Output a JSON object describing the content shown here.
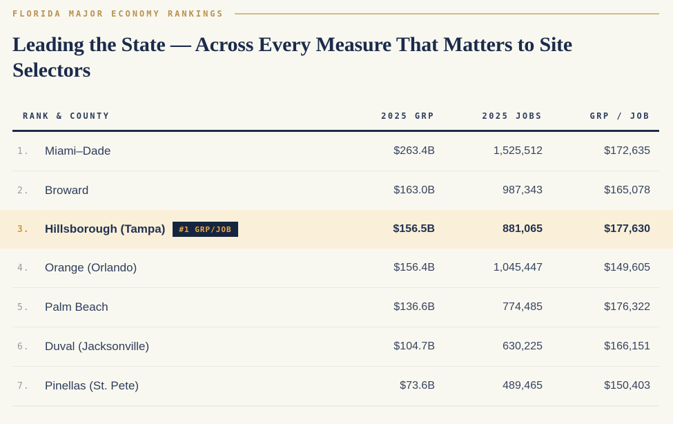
{
  "header": {
    "eyebrow": "FLORIDA MAJOR ECONOMY RANKINGS",
    "title_lines": [
      "Leading the State — Across Every Measure That Matters to Site",
      "Selectors"
    ]
  },
  "table": {
    "columns": [
      "RANK & COUNTY",
      "2025 GRP",
      "2025 JOBS",
      "GRP / JOB"
    ],
    "rows": [
      {
        "rank": "1.",
        "county": "Miami–Dade",
        "grp": "$263.4B",
        "jobs": "1,525,512",
        "grp_per_job": "$172,635",
        "highlighted": false
      },
      {
        "rank": "2.",
        "county": "Broward",
        "grp": "$163.0B",
        "jobs": "987,343",
        "grp_per_job": "$165,078",
        "highlighted": false
      },
      {
        "rank": "3.",
        "county": "Hillsborough (Tampa)",
        "badge": "#1 GRP/JOB",
        "grp": "$156.5B",
        "jobs": "881,065",
        "grp_per_job": "$177,630",
        "highlighted": true
      },
      {
        "rank": "4.",
        "county": "Orange (Orlando)",
        "grp": "$156.4B",
        "jobs": "1,045,447",
        "grp_per_job": "$149,605",
        "highlighted": false
      },
      {
        "rank": "5.",
        "county": "Palm Beach",
        "grp": "$136.6B",
        "jobs": "774,485",
        "grp_per_job": "$176,322",
        "highlighted": false
      },
      {
        "rank": "6.",
        "county": "Duval (Jacksonville)",
        "grp": "$104.7B",
        "jobs": "630,225",
        "grp_per_job": "$166,151",
        "highlighted": false
      },
      {
        "rank": "7.",
        "county": "Pinellas (St. Pete)",
        "grp": "$73.6B",
        "jobs": "489,465",
        "grp_per_job": "$150,403",
        "highlighted": false
      }
    ]
  },
  "colors": {
    "background": "#f9f8f0",
    "title_navy": "#1b2b4b",
    "eyebrow_gold": "#b8924e",
    "highlight_row_bg": "#faf0da",
    "badge_bg": "#16253f",
    "badge_text": "#efa644",
    "rank_gold": "#cc9a41",
    "header_rule_navy": "#1c2c4a"
  }
}
